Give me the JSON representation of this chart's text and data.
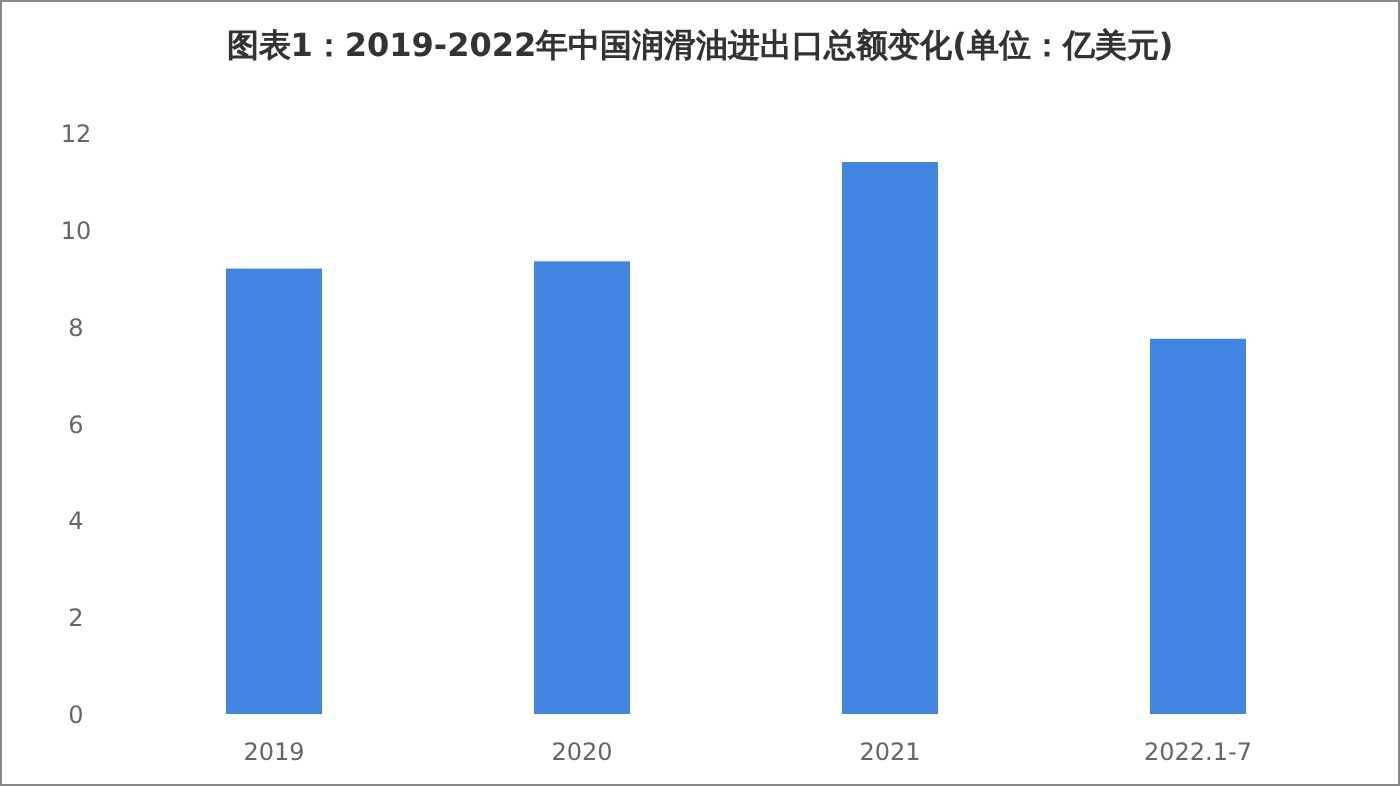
{
  "chart_data": {
    "type": "bar",
    "title": "图表1：2019-2022年中国润滑油进出口总额变化(单位：亿美元)",
    "categories": [
      "2019",
      "2020",
      "2021",
      "2022.1-7"
    ],
    "values": [
      9.2,
      9.35,
      11.4,
      7.75
    ],
    "color": "#4285e0",
    "ylim": [
      0,
      12
    ],
    "yticks": [
      0,
      2,
      4,
      6,
      8,
      10,
      12
    ],
    "grid": false
  }
}
